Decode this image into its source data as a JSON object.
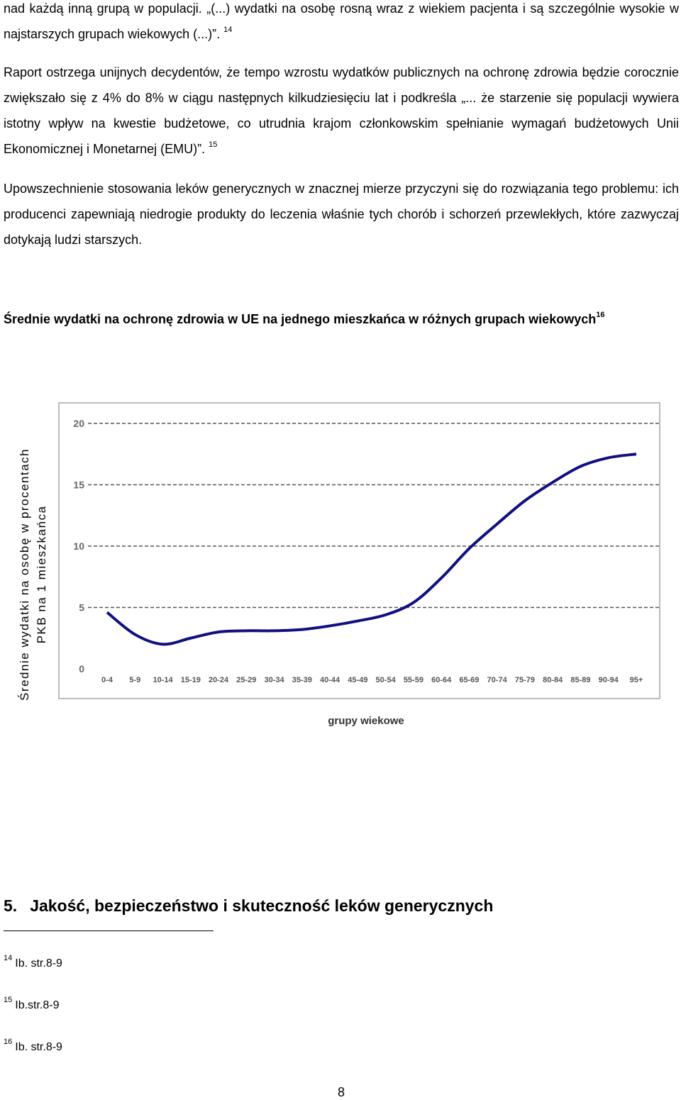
{
  "paragraphs": [
    {
      "text": "nad każdą inną grupą w populacji.  „(...) wydatki na osobę rosną wraz z wiekiem pacjenta i są szczególnie wysokie w najstarszych grupach wiekowych (...)”.",
      "sup": "14"
    },
    {
      "text": "Raport ostrzega unijnych decydentów, że tempo wzrostu wydatków publicznych na ochronę zdrowia będzie corocznie zwiększało się z  4% do 8% w ciągu następnych kilkudziesięciu lat i podkreśla „... że starzenie się populacji wywiera istotny wpływ na kwestie budżetowe,  co utrudnia krajom członkowskim spełnianie wymagań budżetowych Unii Ekonomicznej i Monetarnej (EMU)”.",
      "sup": "15"
    },
    {
      "text": "Upowszechnienie stosowania leków generycznych w znacznej mierze przyczyni się do rozwiązania tego problemu: ich producenci zapewniają niedrogie produkty do leczenia właśnie tych chorób i schorzeń przewlekłych, które zazwyczaj dotykają ludzi starszych."
    }
  ],
  "heading": {
    "text": "Średnie wydatki na ochronę zdrowia w UE na jednego mieszkańca w różnych grupach wiekowych",
    "sup": "16"
  },
  "chart_data": {
    "type": "line",
    "y_label": [
      "Średnie wydatki na osobę w procentach",
      "PKB na 1 mieszkańca"
    ],
    "x_label": "grupy wiekowe",
    "categories": [
      "0-4",
      "5-9",
      "10-14",
      "15-19",
      "20-24",
      "25-29",
      "30-34",
      "35-39",
      "40-44",
      "45-49",
      "50-54",
      "55-59",
      "60-64",
      "65-69",
      "70-74",
      "75-79",
      "80-84",
      "85-89",
      "90-94",
      "95+"
    ],
    "values": [
      4.6,
      2.8,
      2.0,
      2.5,
      3.0,
      3.1,
      3.1,
      3.2,
      3.5,
      3.9,
      4.4,
      5.4,
      7.4,
      9.8,
      11.8,
      13.7,
      15.2,
      16.5,
      17.2,
      17.5
    ],
    "color": "#101080",
    "ylim": [
      0,
      20
    ],
    "yticks": [
      0,
      5,
      10,
      15,
      20
    ],
    "grid": true
  },
  "section": {
    "number": "5.",
    "title": "Jakość, bezpieczeństwo i skuteczność leków generycznych"
  },
  "footnotes": [
    {
      "num": "14",
      "text": "Ib. str.8-9"
    },
    {
      "num": "15",
      "text": "Ib.str.8-9"
    },
    {
      "num": "16",
      "text": "Ib. str.8-9"
    }
  ],
  "page_number": "8"
}
